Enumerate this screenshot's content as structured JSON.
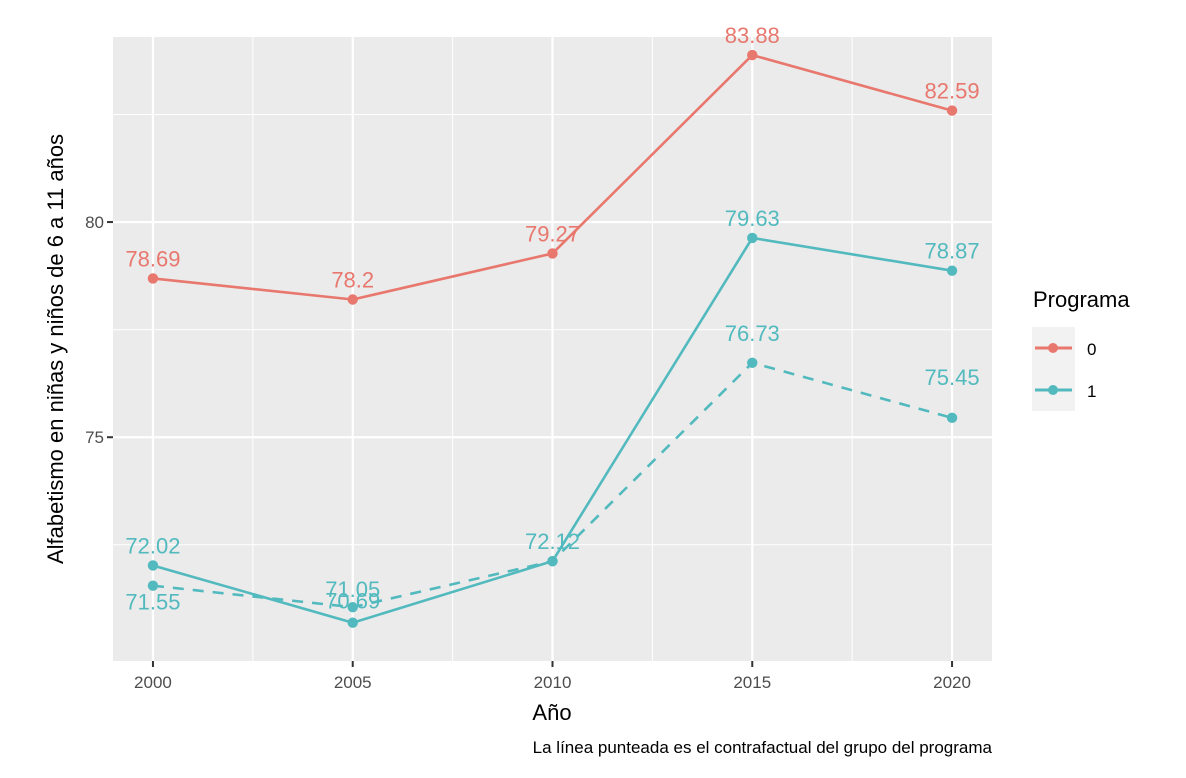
{
  "chart_data": {
    "type": "line",
    "title": "",
    "xlabel": "Año",
    "ylabel": "Alfabetismo en niñas y niños de 6 a 11 años",
    "caption": "La línea punteada es el contrafactual del grupo del programa",
    "x": [
      2000,
      2005,
      2010,
      2015,
      2020
    ],
    "x_ticks": [
      2000,
      2005,
      2010,
      2015,
      2020
    ],
    "y_ticks": [
      75,
      80
    ],
    "xlim": [
      1999,
      2021
    ],
    "ylim": [
      69.8,
      84.3
    ],
    "grid": true,
    "legend": {
      "title": "Programa",
      "position": "right",
      "entries": [
        "0",
        "1"
      ]
    },
    "series": [
      {
        "name": "0",
        "style": "solid",
        "color": "#E8776E",
        "values": [
          78.69,
          78.2,
          79.27,
          83.88,
          82.59
        ],
        "labels": [
          "78.69",
          "78.2",
          "79.27",
          "83.88",
          "82.59"
        ]
      },
      {
        "name": "1",
        "style": "solid",
        "color": "#52BABE",
        "values": [
          72.02,
          70.69,
          72.12,
          79.63,
          78.87
        ],
        "labels": [
          "72.02",
          "70.69",
          "72.12",
          "79.63",
          "78.87"
        ]
      },
      {
        "name": "1 (contrafactual)",
        "style": "dashed",
        "color": "#52BABE",
        "values": [
          71.55,
          71.05,
          72.12,
          76.73,
          75.45
        ],
        "labels": [
          "71.55",
          "71.05",
          "",
          "76.73",
          "75.45"
        ]
      }
    ]
  }
}
